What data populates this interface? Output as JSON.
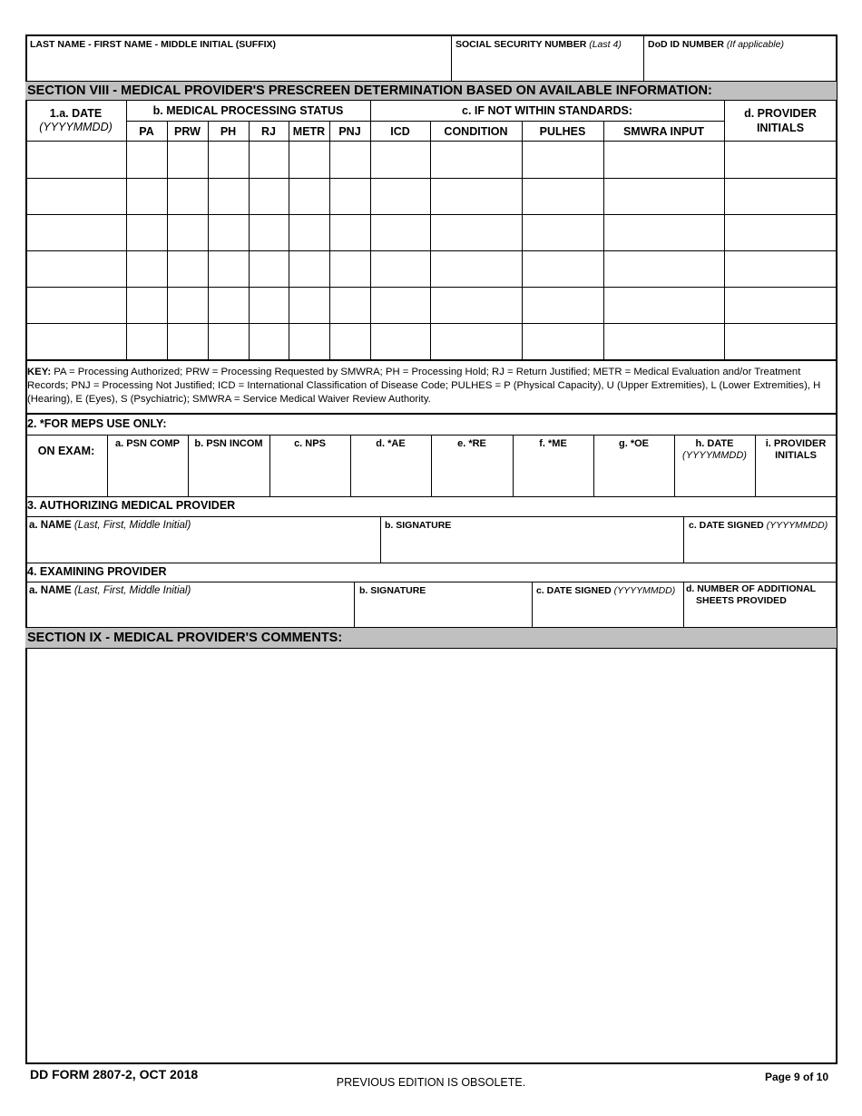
{
  "header": {
    "name_label": "LAST NAME - FIRST NAME - MIDDLE INITIAL (SUFFIX)",
    "ssn_label": "SOCIAL SECURITY NUMBER",
    "ssn_hint": "(Last 4)",
    "dod_label": "DoD ID NUMBER",
    "dod_hint": "(If applicable)"
  },
  "section8": {
    "title": "SECTION VIII - MEDICAL PROVIDER'S PRESCREEN DETERMINATION BASED ON AVAILABLE INFORMATION:",
    "date_label": "1.a. DATE",
    "date_hint": "(YYYYMMDD)",
    "status_label": "b. MEDICAL PROCESSING STATUS",
    "standards_label": "c. IF NOT WITHIN STANDARDS:",
    "initials_label_1": "d. PROVIDER",
    "initials_label_2": "INITIALS",
    "columns": [
      "PA",
      "PRW",
      "PH",
      "RJ",
      "METR",
      "PNJ",
      "ICD",
      "CONDITION",
      "PULHES",
      "SMWRA INPUT"
    ],
    "rows": [
      [
        "",
        "",
        "",
        "",
        "",
        "",
        "",
        "",
        "",
        "",
        "",
        ""
      ],
      [
        "",
        "",
        "",
        "",
        "",
        "",
        "",
        "",
        "",
        "",
        "",
        ""
      ],
      [
        "",
        "",
        "",
        "",
        "",
        "",
        "",
        "",
        "",
        "",
        "",
        ""
      ],
      [
        "",
        "",
        "",
        "",
        "",
        "",
        "",
        "",
        "",
        "",
        "",
        ""
      ],
      [
        "",
        "",
        "",
        "",
        "",
        "",
        "",
        "",
        "",
        "",
        "",
        ""
      ],
      [
        "",
        "",
        "",
        "",
        "",
        "",
        "",
        "",
        "",
        "",
        "",
        ""
      ]
    ],
    "key_label": "KEY:",
    "key_text": " PA = Processing Authorized; PRW = Processing Requested by SMWRA; PH = Processing Hold; RJ = Return Justified; METR = Medical Evaluation and/or Treatment Records; PNJ = Processing Not Justified; ICD = International Classification of Disease Code; PULHES = P (Physical Capacity), U (Upper Extremities), L (Lower Extremities), H (Hearing), E (Eyes), S (Psychiatric); SMWRA = Service Medical Waiver Review Authority."
  },
  "meps": {
    "title": "2. *FOR MEPS USE ONLY:",
    "on_exam": "ON EXAM:",
    "cols": [
      "a. PSN COMP",
      "b. PSN INCOM",
      "c. NPS",
      "d. *AE",
      "e. *RE",
      "f. *ME",
      "g. *OE"
    ],
    "date_label": "h. DATE",
    "date_hint": "(YYYYMMDD)",
    "initials_1": "i. PROVIDER",
    "initials_2": "INITIALS"
  },
  "authorizing": {
    "title": "3. AUTHORIZING MEDICAL PROVIDER",
    "name_label": "a. NAME",
    "name_hint": "(Last, First, Middle Initial)",
    "signature_label": "b. SIGNATURE",
    "date_label": "c. DATE SIGNED",
    "date_hint": "(YYYYMMDD)"
  },
  "examining": {
    "title": "4. EXAMINING PROVIDER",
    "name_label": "a. NAME",
    "name_hint": "(Last, First, Middle Initial)",
    "signature_label": "b. SIGNATURE",
    "date_label": "c. DATE SIGNED",
    "date_hint": "(YYYYMMDD)",
    "sheets_1": "d. NUMBER OF ADDITIONAL",
    "sheets_2": "SHEETS PROVIDED"
  },
  "section9": {
    "title": "SECTION IX - MEDICAL PROVIDER'S COMMENTS:",
    "comments": ""
  },
  "footer": {
    "form_id": "DD FORM 2807-2, OCT 2018",
    "obsolete": "PREVIOUS EDITION IS OBSOLETE.",
    "page": "Page 9 of 10"
  },
  "colors": {
    "section_bar": "#c0c0c0"
  }
}
